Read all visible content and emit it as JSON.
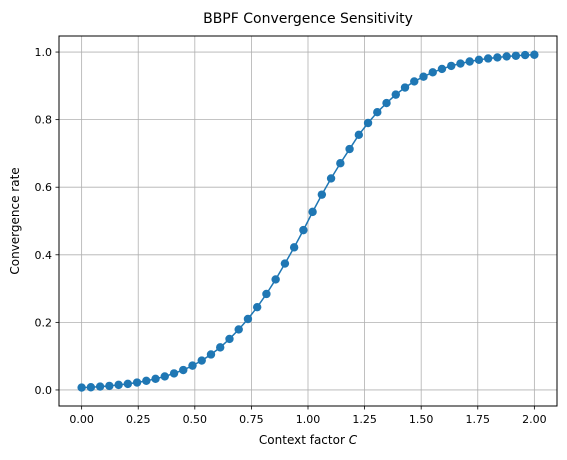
{
  "chart_data": {
    "type": "line",
    "title": "BBPF Convergence Sensitivity",
    "xlabel": "Context factor C",
    "xlabel_text": "Context factor ",
    "xlabel_var": "C",
    "ylabel": "Convergence rate",
    "xlim": [
      -0.1,
      2.1
    ],
    "ylim": [
      -0.0475,
      1.0475
    ],
    "xticks": [
      0.0,
      0.25,
      0.5,
      0.75,
      1.0,
      1.25,
      1.5,
      1.75,
      2.0
    ],
    "xtick_labels": [
      "0.00",
      "0.25",
      "0.50",
      "0.75",
      "1.00",
      "1.25",
      "1.50",
      "1.75",
      "2.00"
    ],
    "yticks": [
      0.0,
      0.2,
      0.4,
      0.6,
      0.8,
      1.0
    ],
    "ytick_labels": [
      "0.0",
      "0.2",
      "0.4",
      "0.6",
      "0.8",
      "1.0"
    ],
    "grid": true,
    "series": [
      {
        "color": "#1f77b4",
        "marker": "circle",
        "x": [
          0.0,
          0.0408,
          0.0816,
          0.1224,
          0.1633,
          0.2041,
          0.2449,
          0.2857,
          0.3265,
          0.3673,
          0.4082,
          0.449,
          0.4898,
          0.5306,
          0.5714,
          0.6122,
          0.6531,
          0.6939,
          0.7347,
          0.7755,
          0.8163,
          0.8571,
          0.898,
          0.9388,
          0.9796,
          1.0204,
          1.0612,
          1.102,
          1.1429,
          1.1837,
          1.2245,
          1.2653,
          1.3061,
          1.3469,
          1.3878,
          1.4286,
          1.4694,
          1.5102,
          1.551,
          1.5918,
          1.6327,
          1.6735,
          1.7143,
          1.7551,
          1.7959,
          1.8367,
          1.8776,
          1.9184,
          1.9592,
          2.0
        ],
        "y": [
          0.007,
          0.008,
          0.01,
          0.012,
          0.015,
          0.018,
          0.022,
          0.027,
          0.033,
          0.04,
          0.049,
          0.059,
          0.072,
          0.087,
          0.105,
          0.126,
          0.151,
          0.179,
          0.21,
          0.245,
          0.284,
          0.327,
          0.374,
          0.422,
          0.473,
          0.527,
          0.578,
          0.626,
          0.671,
          0.713,
          0.755,
          0.79,
          0.822,
          0.849,
          0.874,
          0.895,
          0.913,
          0.927,
          0.94,
          0.95,
          0.959,
          0.966,
          0.972,
          0.977,
          0.981,
          0.984,
          0.987,
          0.989,
          0.991,
          0.992
        ]
      }
    ]
  }
}
